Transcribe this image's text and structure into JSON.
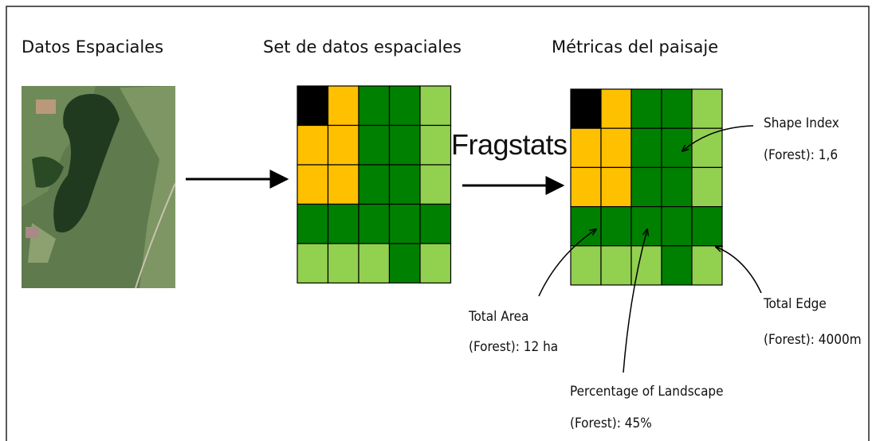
{
  "headings": [
    "Datos Espaciales",
    "Set de datos espaciales",
    "Métricas del paisaje"
  ],
  "tool": "Fragstats",
  "annotations": [
    {
      "lines": [
        "Shape Index",
        "(Forest): 1,6"
      ]
    },
    {
      "lines": [
        "Total Area",
        "(Forest): 12 ha"
      ]
    },
    {
      "lines": [
        "Percentage of Landscape",
        "(Forest): 45%"
      ]
    },
    {
      "lines": [
        "Total Edge",
        "(Forest): 4000m"
      ]
    }
  ]
}
